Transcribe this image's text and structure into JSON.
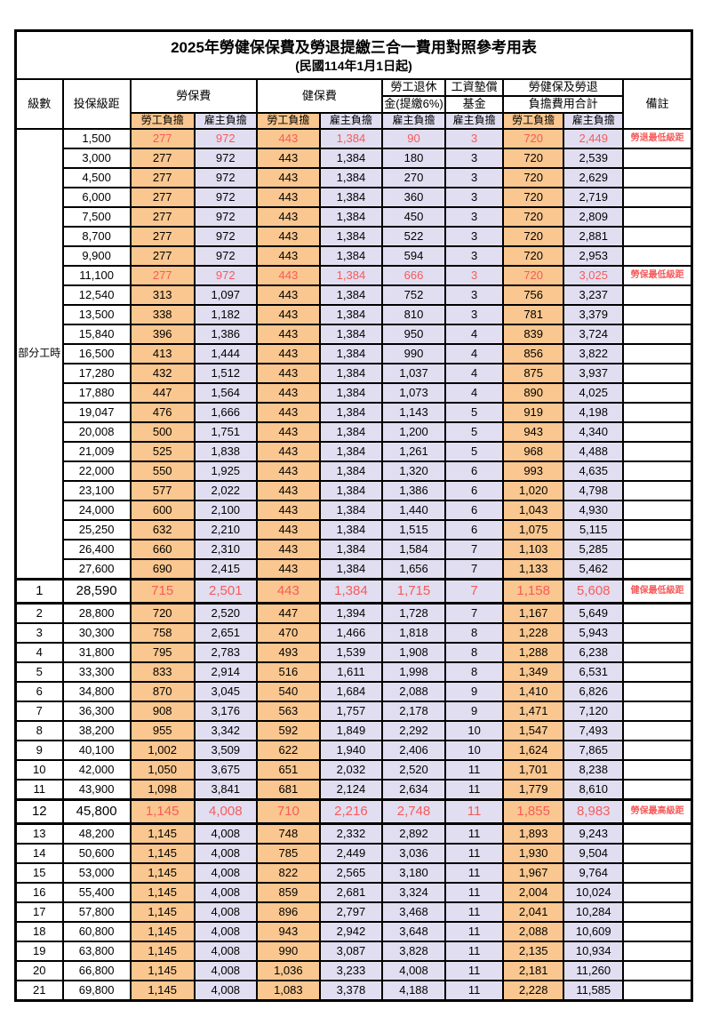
{
  "title": "2025年勞健保保費及勞退提繳三合一費用對照參考用表",
  "subtitle": "(民國114年1月1日起)",
  "header": {
    "level": "級數",
    "bracket": "投保級距",
    "labor_insurance": "勞保費",
    "health_insurance": "健保費",
    "pension_line1": "勞工退休",
    "pension_line2": "金(提繳6%)",
    "wage_fund_line1": "工資墊償",
    "wage_fund_line2": "基金",
    "total_line1": "勞健保及勞退",
    "total_line2": "負擔費用合計",
    "remark": "備註",
    "employee_share": "勞工負擔",
    "employer_share": "雇主負擔"
  },
  "part_time_label": "部分工時",
  "part_time_rowspan": 23,
  "colors": {
    "employee_bg": "#F9C78F",
    "employer_bg": "#E1DEF1",
    "highlight_text": "#F75B5B"
  },
  "rows": [
    {
      "level": "",
      "bracket": "1,500",
      "values": [
        "277",
        "972",
        "443",
        "1,384",
        "90",
        "3",
        "720",
        "2,449"
      ],
      "remark": "勞退最低級距",
      "highlight": true,
      "big": false
    },
    {
      "level": "",
      "bracket": "3,000",
      "values": [
        "277",
        "972",
        "443",
        "1,384",
        "180",
        "3",
        "720",
        "2,539"
      ],
      "remark": "",
      "highlight": false,
      "big": false
    },
    {
      "level": "",
      "bracket": "4,500",
      "values": [
        "277",
        "972",
        "443",
        "1,384",
        "270",
        "3",
        "720",
        "2,629"
      ],
      "remark": "",
      "highlight": false,
      "big": false
    },
    {
      "level": "",
      "bracket": "6,000",
      "values": [
        "277",
        "972",
        "443",
        "1,384",
        "360",
        "3",
        "720",
        "2,719"
      ],
      "remark": "",
      "highlight": false,
      "big": false
    },
    {
      "level": "",
      "bracket": "7,500",
      "values": [
        "277",
        "972",
        "443",
        "1,384",
        "450",
        "3",
        "720",
        "2,809"
      ],
      "remark": "",
      "highlight": false,
      "big": false
    },
    {
      "level": "",
      "bracket": "8,700",
      "values": [
        "277",
        "972",
        "443",
        "1,384",
        "522",
        "3",
        "720",
        "2,881"
      ],
      "remark": "",
      "highlight": false,
      "big": false
    },
    {
      "level": "",
      "bracket": "9,900",
      "values": [
        "277",
        "972",
        "443",
        "1,384",
        "594",
        "3",
        "720",
        "2,953"
      ],
      "remark": "",
      "highlight": false,
      "big": false
    },
    {
      "level": "",
      "bracket": "11,100",
      "values": [
        "277",
        "972",
        "443",
        "1,384",
        "666",
        "3",
        "720",
        "3,025"
      ],
      "remark": "勞保最低級距",
      "highlight": true,
      "big": false
    },
    {
      "level": "",
      "bracket": "12,540",
      "values": [
        "313",
        "1,097",
        "443",
        "1,384",
        "752",
        "3",
        "756",
        "3,237"
      ],
      "remark": "",
      "highlight": false,
      "big": false
    },
    {
      "level": "",
      "bracket": "13,500",
      "values": [
        "338",
        "1,182",
        "443",
        "1,384",
        "810",
        "3",
        "781",
        "3,379"
      ],
      "remark": "",
      "highlight": false,
      "big": false
    },
    {
      "level": "",
      "bracket": "15,840",
      "values": [
        "396",
        "1,386",
        "443",
        "1,384",
        "950",
        "4",
        "839",
        "3,724"
      ],
      "remark": "",
      "highlight": false,
      "big": false
    },
    {
      "level": "",
      "bracket": "16,500",
      "values": [
        "413",
        "1,444",
        "443",
        "1,384",
        "990",
        "4",
        "856",
        "3,822"
      ],
      "remark": "",
      "highlight": false,
      "big": false
    },
    {
      "level": "",
      "bracket": "17,280",
      "values": [
        "432",
        "1,512",
        "443",
        "1,384",
        "1,037",
        "4",
        "875",
        "3,937"
      ],
      "remark": "",
      "highlight": false,
      "big": false
    },
    {
      "level": "",
      "bracket": "17,880",
      "values": [
        "447",
        "1,564",
        "443",
        "1,384",
        "1,073",
        "4",
        "890",
        "4,025"
      ],
      "remark": "",
      "highlight": false,
      "big": false
    },
    {
      "level": "",
      "bracket": "19,047",
      "values": [
        "476",
        "1,666",
        "443",
        "1,384",
        "1,143",
        "5",
        "919",
        "4,198"
      ],
      "remark": "",
      "highlight": false,
      "big": false
    },
    {
      "level": "",
      "bracket": "20,008",
      "values": [
        "500",
        "1,751",
        "443",
        "1,384",
        "1,200",
        "5",
        "943",
        "4,340"
      ],
      "remark": "",
      "highlight": false,
      "big": false
    },
    {
      "level": "",
      "bracket": "21,009",
      "values": [
        "525",
        "1,838",
        "443",
        "1,384",
        "1,261",
        "5",
        "968",
        "4,488"
      ],
      "remark": "",
      "highlight": false,
      "big": false
    },
    {
      "level": "",
      "bracket": "22,000",
      "values": [
        "550",
        "1,925",
        "443",
        "1,384",
        "1,320",
        "6",
        "993",
        "4,635"
      ],
      "remark": "",
      "highlight": false,
      "big": false
    },
    {
      "level": "",
      "bracket": "23,100",
      "values": [
        "577",
        "2,022",
        "443",
        "1,384",
        "1,386",
        "6",
        "1,020",
        "4,798"
      ],
      "remark": "",
      "highlight": false,
      "big": false
    },
    {
      "level": "",
      "bracket": "24,000",
      "values": [
        "600",
        "2,100",
        "443",
        "1,384",
        "1,440",
        "6",
        "1,043",
        "4,930"
      ],
      "remark": "",
      "highlight": false,
      "big": false
    },
    {
      "level": "",
      "bracket": "25,250",
      "values": [
        "632",
        "2,210",
        "443",
        "1,384",
        "1,515",
        "6",
        "1,075",
        "5,115"
      ],
      "remark": "",
      "highlight": false,
      "big": false
    },
    {
      "level": "",
      "bracket": "26,400",
      "values": [
        "660",
        "2,310",
        "443",
        "1,384",
        "1,584",
        "7",
        "1,103",
        "5,285"
      ],
      "remark": "",
      "highlight": false,
      "big": false
    },
    {
      "level": "",
      "bracket": "27,600",
      "values": [
        "690",
        "2,415",
        "443",
        "1,384",
        "1,656",
        "7",
        "1,133",
        "5,462"
      ],
      "remark": "",
      "highlight": false,
      "big": false
    },
    {
      "level": "1",
      "bracket": "28,590",
      "values": [
        "715",
        "2,501",
        "443",
        "1,384",
        "1,715",
        "7",
        "1,158",
        "5,608"
      ],
      "remark": "健保最低級距",
      "highlight": true,
      "big": true
    },
    {
      "level": "2",
      "bracket": "28,800",
      "values": [
        "720",
        "2,520",
        "447",
        "1,394",
        "1,728",
        "7",
        "1,167",
        "5,649"
      ],
      "remark": "",
      "highlight": false,
      "big": false
    },
    {
      "level": "3",
      "bracket": "30,300",
      "values": [
        "758",
        "2,651",
        "470",
        "1,466",
        "1,818",
        "8",
        "1,228",
        "5,943"
      ],
      "remark": "",
      "highlight": false,
      "big": false
    },
    {
      "level": "4",
      "bracket": "31,800",
      "values": [
        "795",
        "2,783",
        "493",
        "1,539",
        "1,908",
        "8",
        "1,288",
        "6,238"
      ],
      "remark": "",
      "highlight": false,
      "big": false
    },
    {
      "level": "5",
      "bracket": "33,300",
      "values": [
        "833",
        "2,914",
        "516",
        "1,611",
        "1,998",
        "8",
        "1,349",
        "6,531"
      ],
      "remark": "",
      "highlight": false,
      "big": false
    },
    {
      "level": "6",
      "bracket": "34,800",
      "values": [
        "870",
        "3,045",
        "540",
        "1,684",
        "2,088",
        "9",
        "1,410",
        "6,826"
      ],
      "remark": "",
      "highlight": false,
      "big": false
    },
    {
      "level": "7",
      "bracket": "36,300",
      "values": [
        "908",
        "3,176",
        "563",
        "1,757",
        "2,178",
        "9",
        "1,471",
        "7,120"
      ],
      "remark": "",
      "highlight": false,
      "big": false
    },
    {
      "level": "8",
      "bracket": "38,200",
      "values": [
        "955",
        "3,342",
        "592",
        "1,849",
        "2,292",
        "10",
        "1,547",
        "7,493"
      ],
      "remark": "",
      "highlight": false,
      "big": false
    },
    {
      "level": "9",
      "bracket": "40,100",
      "values": [
        "1,002",
        "3,509",
        "622",
        "1,940",
        "2,406",
        "10",
        "1,624",
        "7,865"
      ],
      "remark": "",
      "highlight": false,
      "big": false
    },
    {
      "level": "10",
      "bracket": "42,000",
      "values": [
        "1,050",
        "3,675",
        "651",
        "2,032",
        "2,520",
        "11",
        "1,701",
        "8,238"
      ],
      "remark": "",
      "highlight": false,
      "big": false
    },
    {
      "level": "11",
      "bracket": "43,900",
      "values": [
        "1,098",
        "3,841",
        "681",
        "2,124",
        "2,634",
        "11",
        "1,779",
        "8,610"
      ],
      "remark": "",
      "highlight": false,
      "big": false
    },
    {
      "level": "12",
      "bracket": "45,800",
      "values": [
        "1,145",
        "4,008",
        "710",
        "2,216",
        "2,748",
        "11",
        "1,855",
        "8,983"
      ],
      "remark": "勞保最高級距",
      "highlight": true,
      "big": true
    },
    {
      "level": "13",
      "bracket": "48,200",
      "values": [
        "1,145",
        "4,008",
        "748",
        "2,332",
        "2,892",
        "11",
        "1,893",
        "9,243"
      ],
      "remark": "",
      "highlight": false,
      "big": false
    },
    {
      "level": "14",
      "bracket": "50,600",
      "values": [
        "1,145",
        "4,008",
        "785",
        "2,449",
        "3,036",
        "11",
        "1,930",
        "9,504"
      ],
      "remark": "",
      "highlight": false,
      "big": false
    },
    {
      "level": "15",
      "bracket": "53,000",
      "values": [
        "1,145",
        "4,008",
        "822",
        "2,565",
        "3,180",
        "11",
        "1,967",
        "9,764"
      ],
      "remark": "",
      "highlight": false,
      "big": false
    },
    {
      "level": "16",
      "bracket": "55,400",
      "values": [
        "1,145",
        "4,008",
        "859",
        "2,681",
        "3,324",
        "11",
        "2,004",
        "10,024"
      ],
      "remark": "",
      "highlight": false,
      "big": false
    },
    {
      "level": "17",
      "bracket": "57,800",
      "values": [
        "1,145",
        "4,008",
        "896",
        "2,797",
        "3,468",
        "11",
        "2,041",
        "10,284"
      ],
      "remark": "",
      "highlight": false,
      "big": false
    },
    {
      "level": "18",
      "bracket": "60,800",
      "values": [
        "1,145",
        "4,008",
        "943",
        "2,942",
        "3,648",
        "11",
        "2,088",
        "10,609"
      ],
      "remark": "",
      "highlight": false,
      "big": false
    },
    {
      "level": "19",
      "bracket": "63,800",
      "values": [
        "1,145",
        "4,008",
        "990",
        "3,087",
        "3,828",
        "11",
        "2,135",
        "10,934"
      ],
      "remark": "",
      "highlight": false,
      "big": false
    },
    {
      "level": "20",
      "bracket": "66,800",
      "values": [
        "1,145",
        "4,008",
        "1,036",
        "3,233",
        "4,008",
        "11",
        "2,181",
        "11,260"
      ],
      "remark": "",
      "highlight": false,
      "big": false
    },
    {
      "level": "21",
      "bracket": "69,800",
      "values": [
        "1,145",
        "4,008",
        "1,083",
        "3,378",
        "4,188",
        "11",
        "2,228",
        "11,585"
      ],
      "remark": "",
      "highlight": false,
      "big": false
    }
  ]
}
